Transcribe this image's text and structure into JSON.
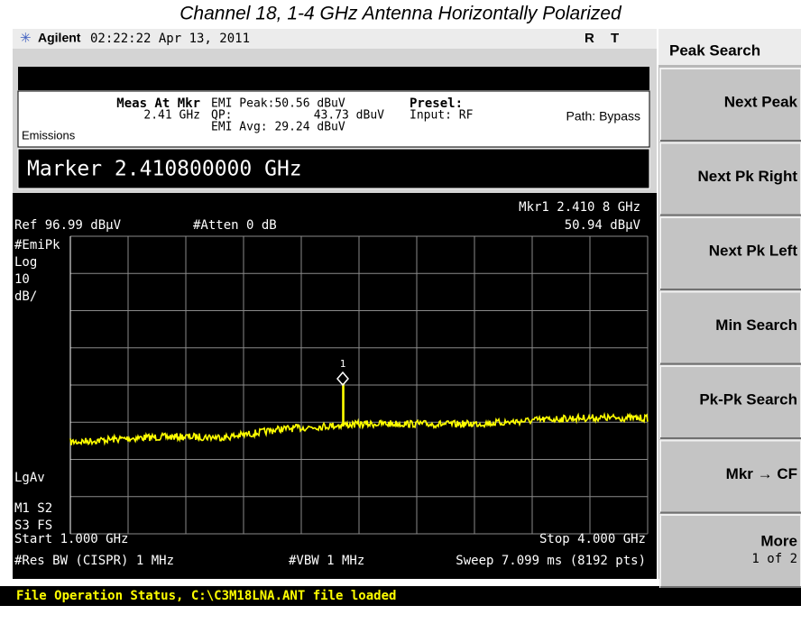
{
  "header": {
    "title": "Channel 18, 1-4 GHz Antenna Horizontally Polarized"
  },
  "top_bar": {
    "brand": "Agilent",
    "datetime": "02:22:22 Apr 13, 2011",
    "indicators": [
      "R",
      "T"
    ]
  },
  "measurement": {
    "label": "Meas At Mkr",
    "freq": "2.41 GHz",
    "mode": "Emissions",
    "emi_peak": "EMI Peak:50.56 dBuV",
    "qp_label": "QP:",
    "qp_value": "43.73 dBuV",
    "emi_avg": "EMI Avg: 29.24 dBuV",
    "presel": "Presel:",
    "input": "Input: RF",
    "path": "Path: Bypass"
  },
  "marker_entry": "Marker 2.410800000 GHz",
  "plot": {
    "marker_readout": "Mkr1  2.410 8 GHz",
    "marker_level": "50.94 dBμV",
    "ref_level": "Ref 96.99 dBμV",
    "atten": "#Atten 0 dB",
    "side_labels": [
      "#EmiPk",
      "Log",
      "10",
      "dB/"
    ],
    "lgav": "LgAv",
    "flags": [
      "M1  S2",
      "S3  FS"
    ],
    "marker_number": "1",
    "start": "Start 1.000 GHz",
    "stop": "Stop 4.000 GHz",
    "res_bw": "#Res BW (CISPR) 1 MHz",
    "vbw": "#VBW 1 MHz",
    "sweep": "Sweep 7.099 ms (8192 pts)"
  },
  "status": "File Operation Status, C:\\C3M18LNA.ANT file loaded",
  "softkeys": {
    "title": "Peak Search",
    "keys": [
      {
        "label": "Next Peak"
      },
      {
        "label": "Next Pk Right"
      },
      {
        "label": "Next Pk Left"
      },
      {
        "label": "Min Search"
      },
      {
        "label": "Pk-Pk Search"
      },
      {
        "label": "Mkr → CF"
      },
      {
        "label": "More",
        "sub": "1 of 2"
      }
    ]
  }
}
